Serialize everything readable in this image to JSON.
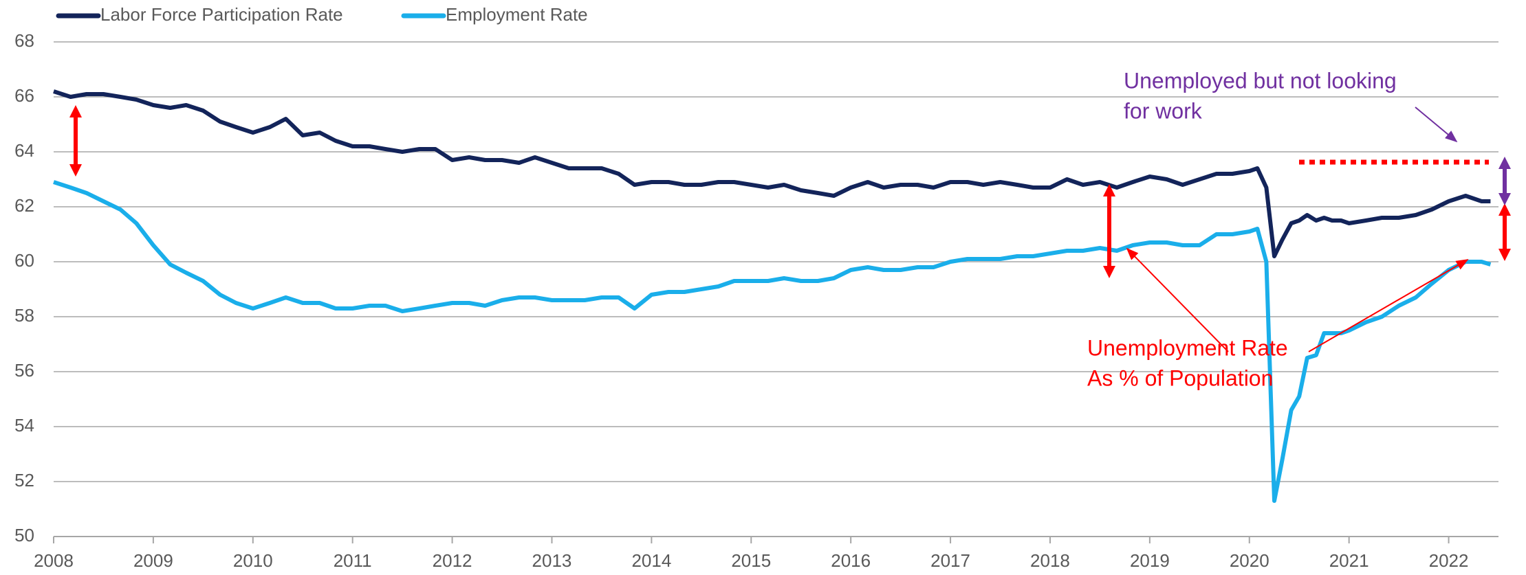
{
  "chart_data": {
    "type": "line",
    "x": [
      2008,
      2008.17,
      2008.33,
      2008.5,
      2008.67,
      2008.83,
      2009,
      2009.17,
      2009.33,
      2009.5,
      2009.67,
      2009.83,
      2010,
      2010.17,
      2010.33,
      2010.5,
      2010.67,
      2010.83,
      2011,
      2011.17,
      2011.33,
      2011.5,
      2011.67,
      2011.83,
      2012,
      2012.17,
      2012.33,
      2012.5,
      2012.67,
      2012.83,
      2013,
      2013.17,
      2013.33,
      2013.5,
      2013.67,
      2013.83,
      2014,
      2014.17,
      2014.33,
      2014.5,
      2014.67,
      2014.83,
      2015,
      2015.17,
      2015.33,
      2015.5,
      2015.67,
      2015.83,
      2016,
      2016.17,
      2016.33,
      2016.5,
      2016.67,
      2016.83,
      2017,
      2017.17,
      2017.33,
      2017.5,
      2017.67,
      2017.83,
      2018,
      2018.17,
      2018.33,
      2018.5,
      2018.67,
      2018.83,
      2019,
      2019.17,
      2019.33,
      2019.5,
      2019.67,
      2019.83,
      2020,
      2020.08,
      2020.17,
      2020.25,
      2020.33,
      2020.42,
      2020.5,
      2020.58,
      2020.67,
      2020.75,
      2020.83,
      2020.92,
      2021,
      2021.17,
      2021.33,
      2021.5,
      2021.67,
      2021.83,
      2022,
      2022.17,
      2022.33,
      2022.42
    ],
    "series": [
      {
        "name": "Labor Force Participation Rate",
        "color": "#13245a",
        "values": [
          66.2,
          66.0,
          66.1,
          66.1,
          66.0,
          65.9,
          65.7,
          65.6,
          65.7,
          65.5,
          65.1,
          64.9,
          64.7,
          64.9,
          65.2,
          64.6,
          64.7,
          64.4,
          64.2,
          64.2,
          64.1,
          64.0,
          64.1,
          64.1,
          63.7,
          63.8,
          63.7,
          63.7,
          63.6,
          63.8,
          63.6,
          63.4,
          63.4,
          63.4,
          63.2,
          62.8,
          62.9,
          62.9,
          62.8,
          62.8,
          62.9,
          62.9,
          62.8,
          62.7,
          62.8,
          62.6,
          62.5,
          62.4,
          62.7,
          62.9,
          62.7,
          62.8,
          62.8,
          62.7,
          62.9,
          62.9,
          62.8,
          62.9,
          62.8,
          62.7,
          62.7,
          63.0,
          62.8,
          62.9,
          62.7,
          62.9,
          63.1,
          63.0,
          62.8,
          63.0,
          63.2,
          63.2,
          63.3,
          63.4,
          62.7,
          60.2,
          60.8,
          61.4,
          61.5,
          61.7,
          61.5,
          61.6,
          61.5,
          61.5,
          61.4,
          61.5,
          61.6,
          61.6,
          61.7,
          61.9,
          62.2,
          62.4,
          62.2,
          62.2
        ]
      },
      {
        "name": "Employment Rate",
        "color": "#1aaeea",
        "values": [
          62.9,
          62.7,
          62.5,
          62.2,
          61.9,
          61.4,
          60.6,
          59.9,
          59.6,
          59.3,
          58.8,
          58.5,
          58.3,
          58.5,
          58.7,
          58.5,
          58.5,
          58.3,
          58.3,
          58.4,
          58.4,
          58.2,
          58.3,
          58.4,
          58.5,
          58.5,
          58.4,
          58.6,
          58.7,
          58.7,
          58.6,
          58.6,
          58.6,
          58.7,
          58.7,
          58.3,
          58.8,
          58.9,
          58.9,
          59.0,
          59.1,
          59.3,
          59.3,
          59.3,
          59.4,
          59.3,
          59.3,
          59.4,
          59.7,
          59.8,
          59.7,
          59.7,
          59.8,
          59.8,
          60.0,
          60.1,
          60.1,
          60.1,
          60.2,
          60.2,
          60.3,
          60.4,
          60.4,
          60.5,
          60.4,
          60.6,
          60.7,
          60.7,
          60.6,
          60.6,
          61.0,
          61.0,
          61.1,
          61.2,
          60.0,
          51.3,
          52.8,
          54.6,
          55.1,
          56.5,
          56.6,
          57.4,
          57.4,
          57.4,
          57.5,
          57.8,
          58.0,
          58.4,
          58.7,
          59.2,
          59.7,
          60.0,
          60.0,
          59.9
        ]
      }
    ],
    "xlim": [
      2008,
      2022.5
    ],
    "xticks": [
      2008,
      2009,
      2010,
      2011,
      2012,
      2013,
      2014,
      2015,
      2016,
      2017,
      2018,
      2019,
      2020,
      2021,
      2022
    ],
    "ylim": [
      50,
      68
    ],
    "yticks": [
      50,
      52,
      54,
      56,
      58,
      60,
      62,
      64,
      66,
      68
    ],
    "grid": true,
    "legend": "top-left",
    "annotations": [
      {
        "lines": [
          "Unemployed but not looking",
          "for work"
        ],
        "color": "#7030a0"
      },
      {
        "lines": [
          "Unemployment Rate",
          "As % of Population"
        ],
        "color": "#ff0000"
      }
    ]
  }
}
